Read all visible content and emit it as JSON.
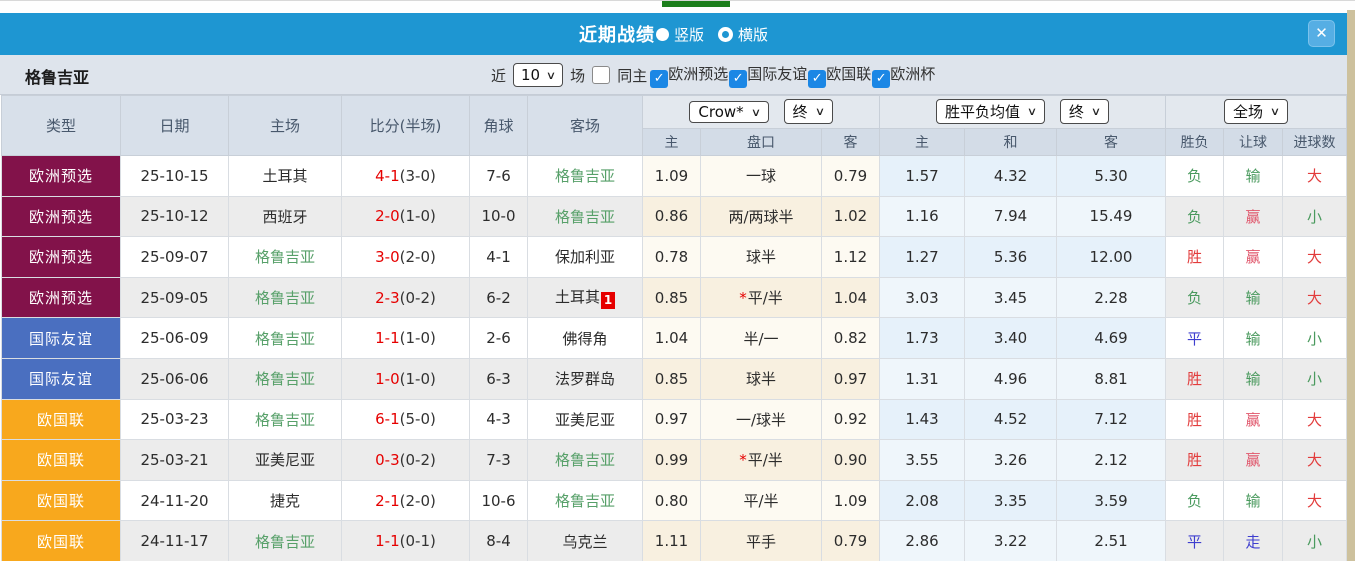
{
  "header": {
    "title": "近期战绩",
    "radio_vertical": "竖版",
    "radio_horizontal": "横版",
    "close_label": "✕"
  },
  "filter": {
    "team": "格鲁吉亚",
    "recent_label": "近",
    "recent_value": "10",
    "matches_label": "场",
    "same_home_label": "同主",
    "competitions": [
      {
        "label": "欧洲预选",
        "checked": true
      },
      {
        "label": "国际友谊",
        "checked": true
      },
      {
        "label": "欧国联",
        "checked": true
      },
      {
        "label": "欧洲杯",
        "checked": true
      }
    ]
  },
  "table": {
    "columns": [
      "类型",
      "日期",
      "主场",
      "比分(半场)",
      "角球",
      "客场"
    ],
    "odds_group": {
      "selects": [
        "Crow*",
        "终"
      ],
      "sub": [
        "主",
        "盘口",
        "客"
      ]
    },
    "avg_group": {
      "selects": [
        "胜平负均值",
        "终"
      ],
      "sub": [
        "主",
        "和",
        "客"
      ]
    },
    "result_group": {
      "selects": [
        "全场"
      ],
      "sub": [
        "胜负",
        "让球",
        "进球数"
      ]
    },
    "type_colors": {
      "欧洲预选": "#82124a",
      "国际友谊": "#4a6fc0",
      "欧国联": "#f8a81d"
    },
    "result_colors": {
      "g": "#4a9a5e",
      "r": "#e23c3c",
      "b": "#3e3ecf",
      "w": "#e0566b"
    },
    "rows": [
      {
        "type": "欧洲预选",
        "date": "25-10-15",
        "home": "土耳其",
        "home_green": false,
        "score": "4-1",
        "half": "(3-0)",
        "corner": "7-6",
        "away": "格鲁吉亚",
        "away_green": true,
        "away_badge": "",
        "odds_home": "1.09",
        "handicap": "一球",
        "handicap_star": false,
        "odds_away": "0.79",
        "avg_home": "1.57",
        "avg_draw": "4.32",
        "avg_away": "5.30",
        "wdl": "负",
        "wdl_c": "g",
        "let": "输",
        "let_c": "g",
        "goal": "大",
        "goal_c": "r"
      },
      {
        "type": "欧洲预选",
        "date": "25-10-12",
        "home": "西班牙",
        "home_green": false,
        "score": "2-0",
        "half": "(1-0)",
        "corner": "10-0",
        "away": "格鲁吉亚",
        "away_green": true,
        "away_badge": "",
        "odds_home": "0.86",
        "handicap": "两/两球半",
        "handicap_star": false,
        "odds_away": "1.02",
        "avg_home": "1.16",
        "avg_draw": "7.94",
        "avg_away": "15.49",
        "wdl": "负",
        "wdl_c": "g",
        "let": "赢",
        "let_c": "w",
        "goal": "小",
        "goal_c": "g"
      },
      {
        "type": "欧洲预选",
        "date": "25-09-07",
        "home": "格鲁吉亚",
        "home_green": true,
        "score": "3-0",
        "half": "(2-0)",
        "corner": "4-1",
        "away": "保加利亚",
        "away_green": false,
        "away_badge": "",
        "odds_home": "0.78",
        "handicap": "球半",
        "handicap_star": false,
        "odds_away": "1.12",
        "avg_home": "1.27",
        "avg_draw": "5.36",
        "avg_away": "12.00",
        "wdl": "胜",
        "wdl_c": "r",
        "let": "赢",
        "let_c": "w",
        "goal": "大",
        "goal_c": "r"
      },
      {
        "type": "欧洲预选",
        "date": "25-09-05",
        "home": "格鲁吉亚",
        "home_green": true,
        "score": "2-3",
        "half": "(0-2)",
        "corner": "6-2",
        "away": "土耳其",
        "away_green": false,
        "away_badge": "1",
        "odds_home": "0.85",
        "handicap": "平/半",
        "handicap_star": true,
        "odds_away": "1.04",
        "avg_home": "3.03",
        "avg_draw": "3.45",
        "avg_away": "2.28",
        "wdl": "负",
        "wdl_c": "g",
        "let": "输",
        "let_c": "g",
        "goal": "大",
        "goal_c": "r"
      },
      {
        "type": "国际友谊",
        "date": "25-06-09",
        "home": "格鲁吉亚",
        "home_green": true,
        "score": "1-1",
        "half": "(1-0)",
        "corner": "2-6",
        "away": "佛得角",
        "away_green": false,
        "away_badge": "",
        "odds_home": "1.04",
        "handicap": "半/一",
        "handicap_star": false,
        "odds_away": "0.82",
        "avg_home": "1.73",
        "avg_draw": "3.40",
        "avg_away": "4.69",
        "wdl": "平",
        "wdl_c": "b",
        "let": "输",
        "let_c": "g",
        "goal": "小",
        "goal_c": "g"
      },
      {
        "type": "国际友谊",
        "date": "25-06-06",
        "home": "格鲁吉亚",
        "home_green": true,
        "score": "1-0",
        "half": "(1-0)",
        "corner": "6-3",
        "away": "法罗群岛",
        "away_green": false,
        "away_badge": "",
        "odds_home": "0.85",
        "handicap": "球半",
        "handicap_star": false,
        "odds_away": "0.97",
        "avg_home": "1.31",
        "avg_draw": "4.96",
        "avg_away": "8.81",
        "wdl": "胜",
        "wdl_c": "r",
        "let": "输",
        "let_c": "g",
        "goal": "小",
        "goal_c": "g"
      },
      {
        "type": "欧国联",
        "date": "25-03-23",
        "home": "格鲁吉亚",
        "home_green": true,
        "score": "6-1",
        "half": "(5-0)",
        "corner": "4-3",
        "away": "亚美尼亚",
        "away_green": false,
        "away_badge": "",
        "odds_home": "0.97",
        "handicap": "一/球半",
        "handicap_star": false,
        "odds_away": "0.92",
        "avg_home": "1.43",
        "avg_draw": "4.52",
        "avg_away": "7.12",
        "wdl": "胜",
        "wdl_c": "r",
        "let": "赢",
        "let_c": "w",
        "goal": "大",
        "goal_c": "r"
      },
      {
        "type": "欧国联",
        "date": "25-03-21",
        "home": "亚美尼亚",
        "home_green": false,
        "score": "0-3",
        "half": "(0-2)",
        "corner": "7-3",
        "away": "格鲁吉亚",
        "away_green": true,
        "away_badge": "",
        "odds_home": "0.99",
        "handicap": "平/半",
        "handicap_star": true,
        "odds_away": "0.90",
        "avg_home": "3.55",
        "avg_draw": "3.26",
        "avg_away": "2.12",
        "wdl": "胜",
        "wdl_c": "r",
        "let": "赢",
        "let_c": "w",
        "goal": "大",
        "goal_c": "r"
      },
      {
        "type": "欧国联",
        "date": "24-11-20",
        "home": "捷克",
        "home_green": false,
        "score": "2-1",
        "half": "(2-0)",
        "corner": "10-6",
        "away": "格鲁吉亚",
        "away_green": true,
        "away_badge": "",
        "odds_home": "0.80",
        "handicap": "平/半",
        "handicap_star": false,
        "odds_away": "1.09",
        "avg_home": "2.08",
        "avg_draw": "3.35",
        "avg_away": "3.59",
        "wdl": "负",
        "wdl_c": "g",
        "let": "输",
        "let_c": "g",
        "goal": "大",
        "goal_c": "r"
      },
      {
        "type": "欧国联",
        "date": "24-11-17",
        "home": "格鲁吉亚",
        "home_green": true,
        "score": "1-1",
        "half": "(0-1)",
        "corner": "8-4",
        "away": "乌克兰",
        "away_green": false,
        "away_badge": "",
        "odds_home": "1.11",
        "handicap": "平手",
        "handicap_star": false,
        "odds_away": "0.79",
        "avg_home": "2.86",
        "avg_draw": "3.22",
        "avg_away": "2.51",
        "wdl": "平",
        "wdl_c": "b",
        "let": "走",
        "let_c": "b",
        "goal": "小",
        "goal_c": "g"
      }
    ]
  }
}
